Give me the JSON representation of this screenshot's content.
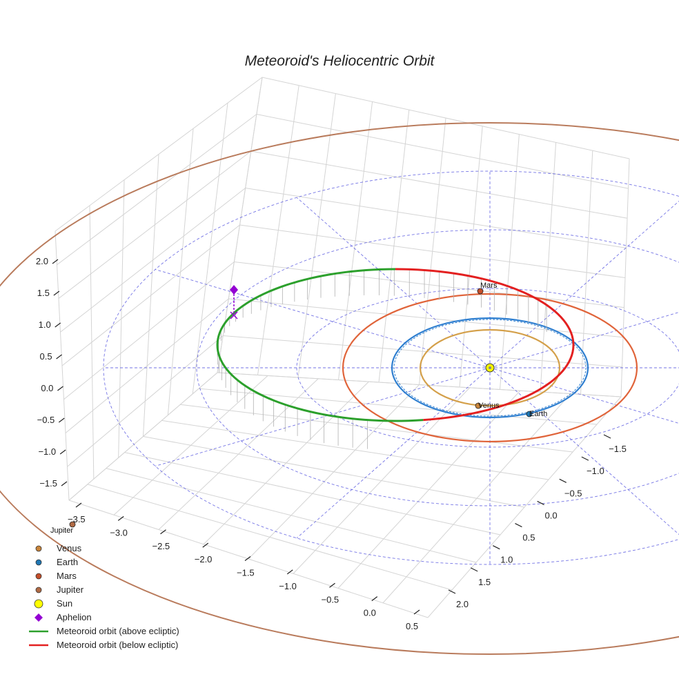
{
  "chart_data": {
    "type": "3d-line",
    "title": "Meteoroid's Heliocentric Orbit",
    "axes": {
      "x": {
        "range": [
          -3.5,
          0.5
        ],
        "ticks": [
          "−3.5",
          "−3.0",
          "−2.5",
          "−2.0",
          "−1.5",
          "−1.0",
          "−0.5",
          "0.0",
          "0.5"
        ]
      },
      "y": {
        "range": [
          -1.5,
          2.0
        ],
        "ticks": [
          "−1.5",
          "−1.0",
          "−0.5",
          "0.0",
          "0.5",
          "1.0",
          "1.5",
          "2.0"
        ]
      },
      "z": {
        "range": [
          -1.5,
          2.0
        ],
        "ticks": [
          "−1.5",
          "−1.0",
          "−0.5",
          "0.0",
          "0.5",
          "1.0",
          "1.5",
          "2.0"
        ]
      }
    },
    "planets": [
      {
        "name": "Venus",
        "orbit_radius_au": 0.72,
        "label": "Venus",
        "color": "#c8843a",
        "orbit_color": "#d4a04a"
      },
      {
        "name": "Earth",
        "orbit_radius_au": 1.0,
        "label": "Earth",
        "color": "#1f77b4",
        "orbit_color": "#2f7fd0"
      },
      {
        "name": "Mars",
        "orbit_radius_au": 1.52,
        "label": "Mars",
        "color": "#c44e2a",
        "orbit_color": "#e0643a"
      },
      {
        "name": "Jupiter",
        "orbit_radius_au": 5.2,
        "label": "Jupiter",
        "color": "#b06a44",
        "orbit_color": "#b97b5c"
      }
    ],
    "sun": {
      "name": "Sun",
      "position": [
        0,
        0,
        0
      ],
      "color": "#ffff00"
    },
    "aphelion": {
      "name": "Aphelion",
      "color": "#9400d3"
    },
    "meteoroid_orbit": {
      "above_ecliptic_color": "#2ca02c",
      "below_ecliptic_color": "#e32020"
    },
    "legend": [
      {
        "label": "Venus",
        "marker": "circle",
        "color": "#c8843a"
      },
      {
        "label": "Earth",
        "marker": "circle",
        "color": "#1f77b4"
      },
      {
        "label": "Mars",
        "marker": "circle",
        "color": "#c44e2a"
      },
      {
        "label": "Jupiter",
        "marker": "circle",
        "color": "#b06a44"
      },
      {
        "label": "Sun",
        "marker": "circle-large",
        "color": "#ffff00"
      },
      {
        "label": "Aphelion",
        "marker": "diamond",
        "color": "#9400d3"
      },
      {
        "label": "Meteoroid orbit (above ecliptic)",
        "marker": "line",
        "color": "#2ca02c"
      },
      {
        "label": "Meteoroid orbit (below ecliptic)",
        "marker": "line",
        "color": "#e32020"
      }
    ]
  }
}
